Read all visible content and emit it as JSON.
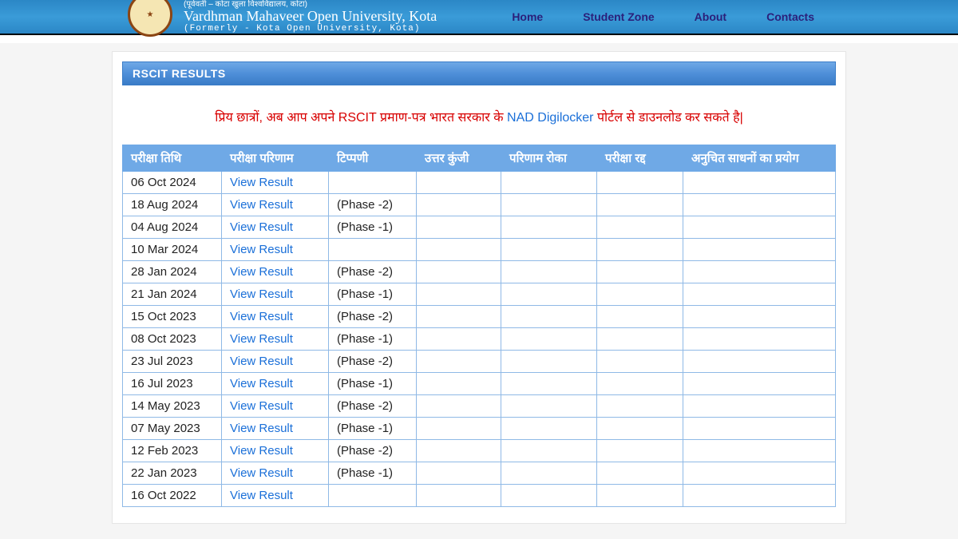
{
  "header": {
    "hindi_line": "(पूर्ववर्ती – कोटा खुला विश्‍वविद्यालय, कोटा)",
    "university_name": "Vardhman Mahaveer Open University, Kota",
    "formerly": "(Formerly - Kota Open University, Kota)",
    "nav": [
      "Home",
      "Student Zone",
      "About",
      "Contacts"
    ]
  },
  "panel_title": "RSCIT RESULTS",
  "notice": {
    "pre": "प्रिय छात्रों, अब आप अपने RSCIT प्रमाण-पत्र भारत सरकार के ",
    "link_text": "NAD Digilocker",
    "post": " पोर्टल से डाउनलोड कर सकते है|"
  },
  "table": {
    "headers": {
      "exam_date": "परीक्षा तिथि",
      "exam_result": "परीक्षा परिणाम",
      "comment": "टिप्पणी",
      "answer_key": "उत्तर कुंजी",
      "result_hold": "परिणाम रोका",
      "exam_cancel": "परीक्षा रद्द",
      "unfair_means": "अनुचित साधनों का प्रयोग"
    },
    "view_result_label": "View Result",
    "rows": [
      {
        "date": "06 Oct 2024",
        "comment": ""
      },
      {
        "date": "18 Aug 2024",
        "comment": "(Phase -2)"
      },
      {
        "date": "04 Aug 2024",
        "comment": "(Phase -1)"
      },
      {
        "date": "10 Mar 2024",
        "comment": ""
      },
      {
        "date": "28 Jan 2024",
        "comment": "(Phase -2)"
      },
      {
        "date": "21 Jan 2024",
        "comment": "(Phase -1)"
      },
      {
        "date": "15 Oct 2023",
        "comment": "(Phase -2)"
      },
      {
        "date": "08 Oct 2023",
        "comment": "(Phase -1)"
      },
      {
        "date": "23 Jul 2023",
        "comment": "(Phase -2)"
      },
      {
        "date": "16 Jul 2023",
        "comment": "(Phase -1)"
      },
      {
        "date": "14 May 2023",
        "comment": "(Phase -2)"
      },
      {
        "date": "07 May 2023",
        "comment": "(Phase -1)"
      },
      {
        "date": "12 Feb 2023",
        "comment": "(Phase -2)"
      },
      {
        "date": "22 Jan 2023",
        "comment": "(Phase -1)"
      },
      {
        "date": "16 Oct 2022",
        "comment": ""
      }
    ]
  },
  "colors": {
    "header_grad_top": "#2b87c6",
    "panel_bar_grad": "#4f8fd9",
    "table_header_bg": "#6fa9e6",
    "cell_border": "#8fb9e6",
    "link_color": "#1a6fd8",
    "notice_color": "#d80000"
  }
}
